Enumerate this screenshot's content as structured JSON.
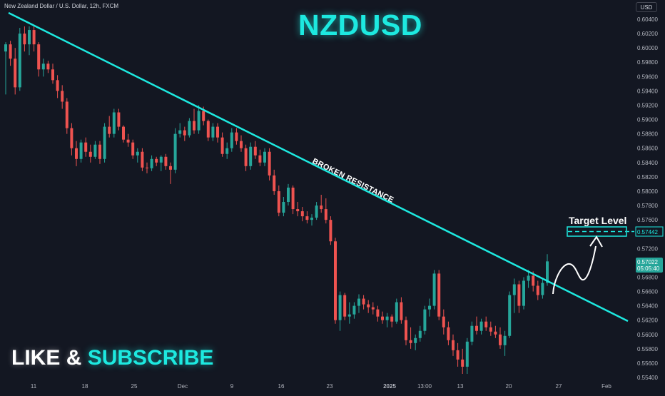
{
  "header": {
    "symbol_description": "New Zealand Dollar / U.S. Dollar, 12h, FXCM",
    "currency": "USD"
  },
  "overlay": {
    "title": "NZDUSD",
    "cta_like": "LIKE",
    "cta_amp": "&",
    "cta_subscribe": "SUBSCRIBE",
    "trendline_label": "BROKEN RESISTANCE",
    "target_label": "Target Level"
  },
  "price_axis": {
    "ticks": [
      "0.60400",
      "0.60200",
      "0.60000",
      "0.59800",
      "0.59600",
      "0.59400",
      "0.59200",
      "0.59000",
      "0.58800",
      "0.58600",
      "0.58400",
      "0.58200",
      "0.58000",
      "0.57800",
      "0.57600",
      "0.57400",
      "0.57200",
      "0.57000",
      "0.56800",
      "0.56600",
      "0.56400",
      "0.56200",
      "0.56000",
      "0.55800",
      "0.55600",
      "0.55400"
    ],
    "current_price": "0.57022",
    "countdown": "05:05:40",
    "target_price": "0.57442"
  },
  "time_axis": {
    "ticks": [
      "11",
      "18",
      "25",
      "Dec",
      "9",
      "16",
      "23",
      "2025",
      "13:00",
      "13",
      "20",
      "27",
      "Feb"
    ]
  },
  "colors": {
    "background": "#131722",
    "up": "#26a69a",
    "down": "#ef5350",
    "accent": "#1de9e0",
    "axis_text": "#b2b5be"
  },
  "chart_data": {
    "type": "candlestick",
    "instrument": "NZDUSD",
    "timeframe": "12h",
    "ylim": [
      0.5533,
      0.6045
    ],
    "x_ticks": [
      "11",
      "18",
      "25",
      "Dec",
      "9",
      "16",
      "23",
      "2025",
      "13:00",
      "13",
      "20",
      "27",
      "Feb"
    ],
    "candles": [
      {
        "o": 0.5995,
        "h": 0.6008,
        "l": 0.5935,
        "c": 0.6005
      },
      {
        "o": 0.6005,
        "h": 0.601,
        "l": 0.5975,
        "c": 0.5985
      },
      {
        "o": 0.5985,
        "h": 0.6,
        "l": 0.5935,
        "c": 0.5945
      },
      {
        "o": 0.5945,
        "h": 0.6028,
        "l": 0.594,
        "c": 0.602
      },
      {
        "o": 0.602,
        "h": 0.603,
        "l": 0.5995,
        "c": 0.6005
      },
      {
        "o": 0.6005,
        "h": 0.603,
        "l": 0.599,
        "c": 0.6025
      },
      {
        "o": 0.6025,
        "h": 0.603,
        "l": 0.5995,
        "c": 0.6005
      },
      {
        "o": 0.6005,
        "h": 0.6008,
        "l": 0.596,
        "c": 0.597
      },
      {
        "o": 0.597,
        "h": 0.5985,
        "l": 0.596,
        "c": 0.5978
      },
      {
        "o": 0.5978,
        "h": 0.5982,
        "l": 0.5965,
        "c": 0.597
      },
      {
        "o": 0.597,
        "h": 0.5978,
        "l": 0.595,
        "c": 0.5955
      },
      {
        "o": 0.5955,
        "h": 0.5962,
        "l": 0.593,
        "c": 0.594
      },
      {
        "o": 0.594,
        "h": 0.5948,
        "l": 0.5915,
        "c": 0.5925
      },
      {
        "o": 0.5925,
        "h": 0.593,
        "l": 0.588,
        "c": 0.5888
      },
      {
        "o": 0.5888,
        "h": 0.5895,
        "l": 0.585,
        "c": 0.586
      },
      {
        "o": 0.586,
        "h": 0.587,
        "l": 0.5835,
        "c": 0.5845
      },
      {
        "o": 0.5845,
        "h": 0.5872,
        "l": 0.584,
        "c": 0.5868
      },
      {
        "o": 0.5868,
        "h": 0.5875,
        "l": 0.5848,
        "c": 0.5855
      },
      {
        "o": 0.5855,
        "h": 0.5865,
        "l": 0.584,
        "c": 0.5848
      },
      {
        "o": 0.5848,
        "h": 0.587,
        "l": 0.5845,
        "c": 0.5865
      },
      {
        "o": 0.5865,
        "h": 0.587,
        "l": 0.5838,
        "c": 0.5845
      },
      {
        "o": 0.5845,
        "h": 0.5895,
        "l": 0.584,
        "c": 0.589
      },
      {
        "o": 0.589,
        "h": 0.5905,
        "l": 0.5875,
        "c": 0.588
      },
      {
        "o": 0.588,
        "h": 0.5915,
        "l": 0.5875,
        "c": 0.591
      },
      {
        "o": 0.591,
        "h": 0.5915,
        "l": 0.5885,
        "c": 0.589
      },
      {
        "o": 0.589,
        "h": 0.5892,
        "l": 0.5868,
        "c": 0.5872
      },
      {
        "o": 0.5872,
        "h": 0.588,
        "l": 0.5862,
        "c": 0.5868
      },
      {
        "o": 0.5868,
        "h": 0.5872,
        "l": 0.5845,
        "c": 0.585
      },
      {
        "o": 0.585,
        "h": 0.586,
        "l": 0.584,
        "c": 0.5855
      },
      {
        "o": 0.5855,
        "h": 0.586,
        "l": 0.5828,
        "c": 0.5833
      },
      {
        "o": 0.5833,
        "h": 0.584,
        "l": 0.5825,
        "c": 0.5832
      },
      {
        "o": 0.5832,
        "h": 0.585,
        "l": 0.5828,
        "c": 0.5845
      },
      {
        "o": 0.5845,
        "h": 0.5848,
        "l": 0.5835,
        "c": 0.584
      },
      {
        "o": 0.584,
        "h": 0.585,
        "l": 0.5828,
        "c": 0.5848
      },
      {
        "o": 0.5848,
        "h": 0.5852,
        "l": 0.583,
        "c": 0.5835
      },
      {
        "o": 0.5835,
        "h": 0.584,
        "l": 0.581,
        "c": 0.583
      },
      {
        "o": 0.583,
        "h": 0.5888,
        "l": 0.5825,
        "c": 0.588
      },
      {
        "o": 0.588,
        "h": 0.5895,
        "l": 0.5875,
        "c": 0.5885
      },
      {
        "o": 0.5885,
        "h": 0.589,
        "l": 0.587,
        "c": 0.5878
      },
      {
        "o": 0.5878,
        "h": 0.5902,
        "l": 0.5875,
        "c": 0.5898
      },
      {
        "o": 0.5898,
        "h": 0.5915,
        "l": 0.588,
        "c": 0.5885
      },
      {
        "o": 0.5885,
        "h": 0.592,
        "l": 0.588,
        "c": 0.5912
      },
      {
        "o": 0.5912,
        "h": 0.5918,
        "l": 0.5892,
        "c": 0.5898
      },
      {
        "o": 0.5898,
        "h": 0.59,
        "l": 0.587,
        "c": 0.5875
      },
      {
        "o": 0.5875,
        "h": 0.5895,
        "l": 0.587,
        "c": 0.589
      },
      {
        "o": 0.589,
        "h": 0.5895,
        "l": 0.5868,
        "c": 0.5875
      },
      {
        "o": 0.5875,
        "h": 0.5882,
        "l": 0.5848,
        "c": 0.5852
      },
      {
        "o": 0.5852,
        "h": 0.5868,
        "l": 0.5845,
        "c": 0.586
      },
      {
        "o": 0.586,
        "h": 0.5888,
        "l": 0.5855,
        "c": 0.5882
      },
      {
        "o": 0.5882,
        "h": 0.5888,
        "l": 0.5865,
        "c": 0.587
      },
      {
        "o": 0.587,
        "h": 0.5878,
        "l": 0.5855,
        "c": 0.586
      },
      {
        "o": 0.586,
        "h": 0.5865,
        "l": 0.5828,
        "c": 0.5835
      },
      {
        "o": 0.5835,
        "h": 0.5868,
        "l": 0.583,
        "c": 0.5862
      },
      {
        "o": 0.5862,
        "h": 0.587,
        "l": 0.5845,
        "c": 0.585
      },
      {
        "o": 0.585,
        "h": 0.5858,
        "l": 0.5835,
        "c": 0.584
      },
      {
        "o": 0.584,
        "h": 0.586,
        "l": 0.5835,
        "c": 0.5855
      },
      {
        "o": 0.5855,
        "h": 0.586,
        "l": 0.5815,
        "c": 0.5822
      },
      {
        "o": 0.5822,
        "h": 0.583,
        "l": 0.5795,
        "c": 0.58
      },
      {
        "o": 0.58,
        "h": 0.5808,
        "l": 0.5765,
        "c": 0.577
      },
      {
        "o": 0.577,
        "h": 0.5792,
        "l": 0.5765,
        "c": 0.5785
      },
      {
        "o": 0.5785,
        "h": 0.581,
        "l": 0.578,
        "c": 0.5805
      },
      {
        "o": 0.5805,
        "h": 0.5808,
        "l": 0.5768,
        "c": 0.5775
      },
      {
        "o": 0.5775,
        "h": 0.5785,
        "l": 0.5765,
        "c": 0.5772
      },
      {
        "o": 0.5772,
        "h": 0.5778,
        "l": 0.5758,
        "c": 0.5765
      },
      {
        "o": 0.5765,
        "h": 0.5772,
        "l": 0.5755,
        "c": 0.576
      },
      {
        "o": 0.576,
        "h": 0.5768,
        "l": 0.5752,
        "c": 0.5763
      },
      {
        "o": 0.5763,
        "h": 0.5785,
        "l": 0.576,
        "c": 0.578
      },
      {
        "o": 0.578,
        "h": 0.5795,
        "l": 0.577,
        "c": 0.5775
      },
      {
        "o": 0.5775,
        "h": 0.579,
        "l": 0.5755,
        "c": 0.576
      },
      {
        "o": 0.576,
        "h": 0.5765,
        "l": 0.5725,
        "c": 0.573
      },
      {
        "o": 0.573,
        "h": 0.5735,
        "l": 0.5615,
        "c": 0.562
      },
      {
        "o": 0.562,
        "h": 0.566,
        "l": 0.5605,
        "c": 0.5655
      },
      {
        "o": 0.5655,
        "h": 0.5658,
        "l": 0.562,
        "c": 0.5625
      },
      {
        "o": 0.5625,
        "h": 0.5645,
        "l": 0.5615,
        "c": 0.5628
      },
      {
        "o": 0.5628,
        "h": 0.5645,
        "l": 0.5622,
        "c": 0.564
      },
      {
        "o": 0.564,
        "h": 0.5656,
        "l": 0.563,
        "c": 0.565
      },
      {
        "o": 0.565,
        "h": 0.5655,
        "l": 0.5635,
        "c": 0.5642
      },
      {
        "o": 0.5642,
        "h": 0.5648,
        "l": 0.563,
        "c": 0.5638
      },
      {
        "o": 0.5638,
        "h": 0.5645,
        "l": 0.5628,
        "c": 0.5635
      },
      {
        "o": 0.5635,
        "h": 0.564,
        "l": 0.5618,
        "c": 0.5625
      },
      {
        "o": 0.5625,
        "h": 0.5632,
        "l": 0.5615,
        "c": 0.562
      },
      {
        "o": 0.562,
        "h": 0.563,
        "l": 0.561,
        "c": 0.5625
      },
      {
        "o": 0.5625,
        "h": 0.5628,
        "l": 0.561,
        "c": 0.5618
      },
      {
        "o": 0.5618,
        "h": 0.565,
        "l": 0.5615,
        "c": 0.5645
      },
      {
        "o": 0.5645,
        "h": 0.5652,
        "l": 0.5615,
        "c": 0.562
      },
      {
        "o": 0.562,
        "h": 0.5625,
        "l": 0.5585,
        "c": 0.5592
      },
      {
        "o": 0.5592,
        "h": 0.561,
        "l": 0.558,
        "c": 0.5588
      },
      {
        "o": 0.5588,
        "h": 0.56,
        "l": 0.5578,
        "c": 0.5595
      },
      {
        "o": 0.5595,
        "h": 0.5612,
        "l": 0.559,
        "c": 0.5605
      },
      {
        "o": 0.5605,
        "h": 0.564,
        "l": 0.56,
        "c": 0.5635
      },
      {
        "o": 0.5635,
        "h": 0.565,
        "l": 0.5625,
        "c": 0.564
      },
      {
        "o": 0.564,
        "h": 0.569,
        "l": 0.5635,
        "c": 0.5685
      },
      {
        "o": 0.5685,
        "h": 0.569,
        "l": 0.562,
        "c": 0.5625
      },
      {
        "o": 0.5625,
        "h": 0.5635,
        "l": 0.56,
        "c": 0.561
      },
      {
        "o": 0.561,
        "h": 0.5618,
        "l": 0.5585,
        "c": 0.5592
      },
      {
        "o": 0.5592,
        "h": 0.56,
        "l": 0.557,
        "c": 0.5578
      },
      {
        "o": 0.5578,
        "h": 0.5588,
        "l": 0.5555,
        "c": 0.5565
      },
      {
        "o": 0.5565,
        "h": 0.558,
        "l": 0.5545,
        "c": 0.5555
      },
      {
        "o": 0.5555,
        "h": 0.5595,
        "l": 0.5545,
        "c": 0.559
      },
      {
        "o": 0.559,
        "h": 0.5618,
        "l": 0.5585,
        "c": 0.5612
      },
      {
        "o": 0.5612,
        "h": 0.5625,
        "l": 0.56,
        "c": 0.5605
      },
      {
        "o": 0.5605,
        "h": 0.5622,
        "l": 0.56,
        "c": 0.5618
      },
      {
        "o": 0.5618,
        "h": 0.5625,
        "l": 0.5605,
        "c": 0.561
      },
      {
        "o": 0.561,
        "h": 0.5618,
        "l": 0.5598,
        "c": 0.5604
      },
      {
        "o": 0.5604,
        "h": 0.5612,
        "l": 0.5595,
        "c": 0.56
      },
      {
        "o": 0.56,
        "h": 0.561,
        "l": 0.558,
        "c": 0.5585
      },
      {
        "o": 0.5585,
        "h": 0.5605,
        "l": 0.557,
        "c": 0.5598
      },
      {
        "o": 0.5598,
        "h": 0.566,
        "l": 0.5595,
        "c": 0.5655
      },
      {
        "o": 0.5655,
        "h": 0.5678,
        "l": 0.563,
        "c": 0.567
      },
      {
        "o": 0.567,
        "h": 0.5675,
        "l": 0.563,
        "c": 0.564
      },
      {
        "o": 0.564,
        "h": 0.568,
        "l": 0.5635,
        "c": 0.5675
      },
      {
        "o": 0.5675,
        "h": 0.569,
        "l": 0.5665,
        "c": 0.5682
      },
      {
        "o": 0.5682,
        "h": 0.5688,
        "l": 0.566,
        "c": 0.5668
      },
      {
        "o": 0.5668,
        "h": 0.5675,
        "l": 0.5648,
        "c": 0.5655
      },
      {
        "o": 0.5655,
        "h": 0.5678,
        "l": 0.565,
        "c": 0.5672
      },
      {
        "o": 0.5672,
        "h": 0.5712,
        "l": 0.5668,
        "c": 0.5702
      }
    ],
    "annotations": [
      {
        "type": "trendline",
        "label": "BROKEN RESISTANCE"
      },
      {
        "type": "level",
        "label": "Target Level",
        "price": 0.57442
      }
    ]
  }
}
